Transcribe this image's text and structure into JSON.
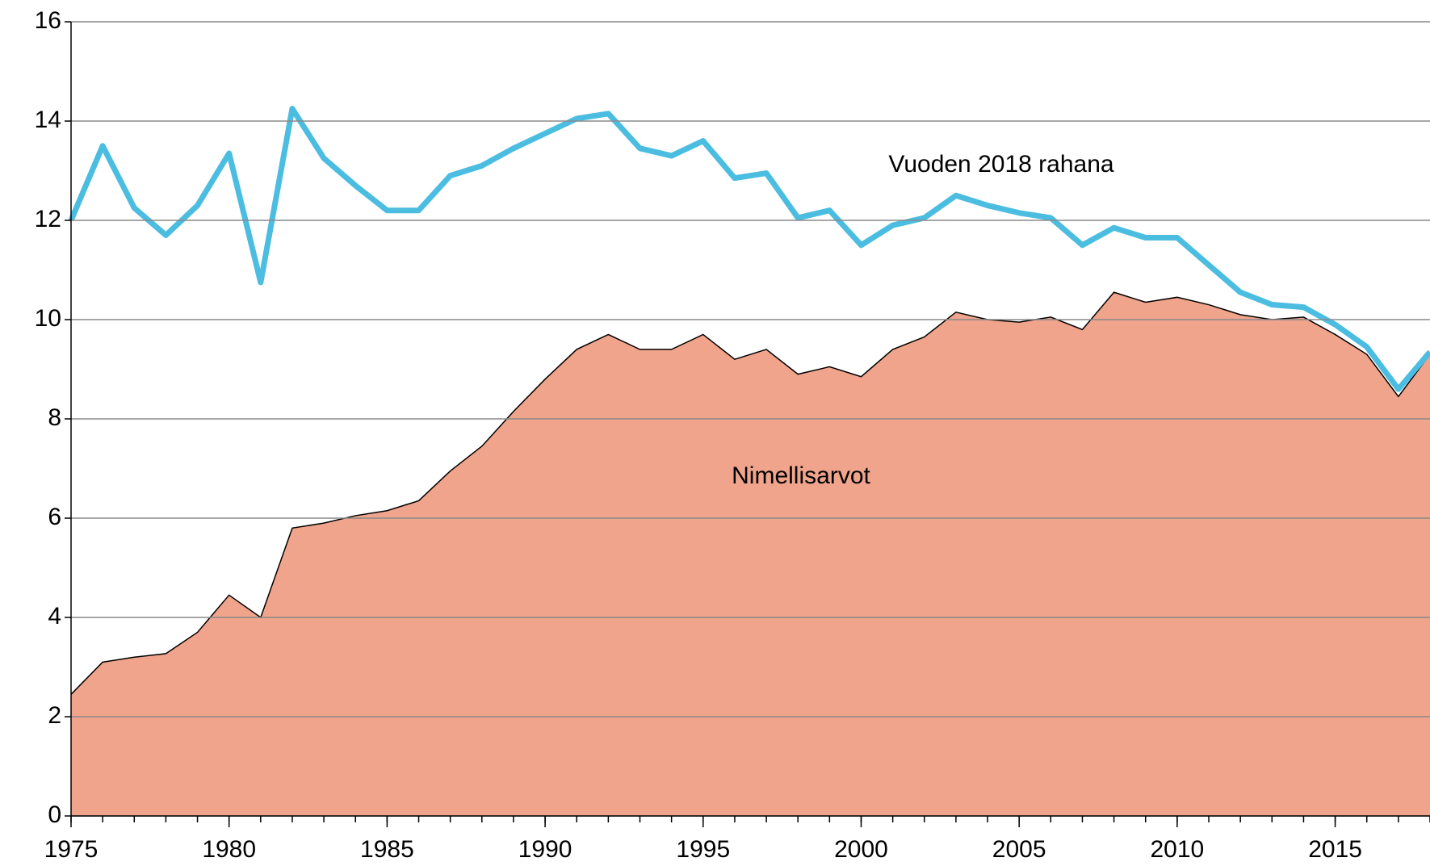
{
  "chart_data": {
    "type": "line",
    "x": [
      1975,
      1976,
      1977,
      1978,
      1979,
      1980,
      1981,
      1982,
      1983,
      1984,
      1985,
      1986,
      1987,
      1988,
      1989,
      1990,
      1991,
      1992,
      1993,
      1994,
      1995,
      1996,
      1997,
      1998,
      1999,
      2000,
      2001,
      2002,
      2003,
      2004,
      2005,
      2006,
      2007,
      2008,
      2009,
      2010,
      2011,
      2012,
      2013,
      2014,
      2015,
      2016,
      2017,
      2018
    ],
    "series": [
      {
        "name": "Nimellisarvot",
        "kind": "area",
        "color": "#f0a48c",
        "values": [
          2.45,
          3.1,
          3.2,
          3.27,
          3.7,
          4.45,
          4.0,
          5.8,
          5.9,
          6.05,
          6.15,
          6.35,
          6.95,
          7.45,
          8.15,
          8.8,
          9.4,
          9.7,
          9.4,
          9.4,
          9.7,
          9.2,
          9.4,
          8.9,
          9.05,
          8.85,
          9.4,
          9.65,
          10.15,
          10.0,
          9.95,
          10.05,
          9.8,
          10.55,
          10.35,
          10.45,
          10.3,
          10.1,
          10.0,
          10.05,
          9.7,
          9.3,
          8.45,
          9.3
        ]
      },
      {
        "name": "Vuoden 2018 rahana",
        "kind": "line",
        "color": "#4bbde0",
        "values": [
          12.0,
          13.5,
          12.25,
          11.7,
          12.3,
          13.35,
          10.75,
          14.25,
          13.25,
          12.7,
          12.2,
          12.2,
          12.9,
          13.1,
          13.45,
          13.75,
          14.05,
          14.15,
          13.45,
          13.3,
          13.6,
          12.85,
          12.95,
          12.05,
          12.2,
          11.5,
          11.9,
          12.05,
          12.5,
          12.3,
          12.15,
          12.05,
          11.5,
          11.85,
          11.65,
          11.65,
          11.1,
          10.55,
          10.3,
          10.25,
          9.9,
          9.45,
          8.6,
          9.35
        ]
      }
    ],
    "xlim": [
      1975,
      2018
    ],
    "xticks": [
      1975,
      1980,
      1985,
      1990,
      1995,
      2000,
      2005,
      2010,
      2015
    ],
    "ylim": [
      0,
      16
    ],
    "yticks": [
      0,
      2,
      4,
      6,
      8,
      10,
      12,
      14,
      16
    ],
    "grid": true
  }
}
